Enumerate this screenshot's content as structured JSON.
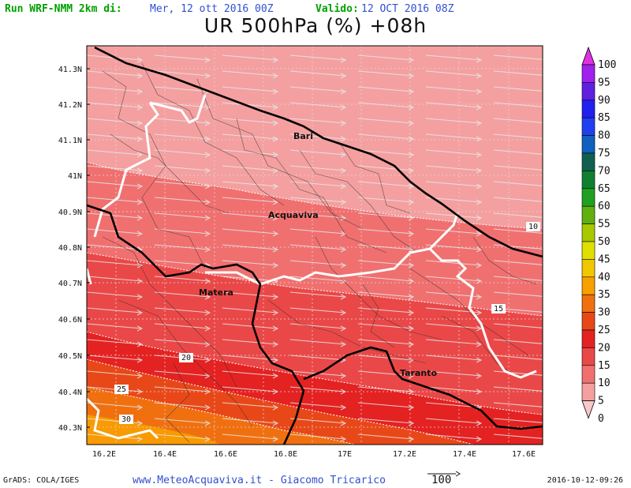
{
  "header": {
    "run_label": "Run WRF-NMM 2km di:",
    "run_date": "Mer, 12 ott 2016 00Z",
    "valid_label": "Valido:",
    "valid_date": "12 OCT 2016 08Z"
  },
  "title": "UR 500hPa (%) +08h",
  "map": {
    "lat_ticks": [
      "41.3N",
      "41.2N",
      "41.1N",
      "41N",
      "40.9N",
      "40.8N",
      "40.7N",
      "40.6N",
      "40.5N",
      "40.4N",
      "40.3N"
    ],
    "lon_ticks": [
      "16.2E",
      "16.4E",
      "16.6E",
      "16.8E",
      "17E",
      "17.2E",
      "17.4E",
      "17.6E"
    ],
    "cities": [
      "Bari",
      "Acquaviva",
      "Matera",
      "Taranto"
    ],
    "contour_labels": [
      "10",
      "15",
      "20",
      "25",
      "30"
    ],
    "band_colors": [
      "#f4a0a0",
      "#f07070",
      "#ea4848",
      "#e42222",
      "#e84818",
      "#f07010",
      "#f89a00"
    ]
  },
  "colorbar": {
    "labels": [
      "100",
      "95",
      "90",
      "85",
      "80",
      "75",
      "70",
      "65",
      "60",
      "55",
      "50",
      "45",
      "40",
      "35",
      "30",
      "25",
      "20",
      "15",
      "10",
      "5",
      "0"
    ],
    "colors": [
      "#e030e0",
      "#a020f0",
      "#6020e0",
      "#2020f0",
      "#2040f0",
      "#1060c0",
      "#106050",
      "#108030",
      "#20a020",
      "#60b010",
      "#a8c800",
      "#e0e000",
      "#f0c800",
      "#f8a000",
      "#f07010",
      "#e84818",
      "#e42222",
      "#ea4848",
      "#f07070",
      "#f4a0a0",
      "#f8c8c8"
    ]
  },
  "footer": {
    "grads": "GrADS: COLA/IGES",
    "credit": "www.MeteoAcquaviva.it  -  Giacomo Tricarico",
    "vector_ref": "100",
    "timestamp": "2016-10-12-09:26"
  }
}
